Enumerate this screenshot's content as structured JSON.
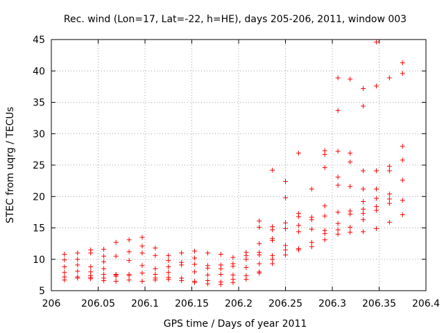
{
  "chart_data": {
    "type": "scatter",
    "title": "Rec. wind (Lon=17, Lat=-22, h=HE), days 205-206, 2011, window 003",
    "xlabel": "GPS time / Days of year 2011",
    "ylabel": "STEC from uqrg / TECUs",
    "xlim": [
      206,
      206.4
    ],
    "ylim": [
      5,
      45
    ],
    "x_ticks": [
      "206",
      "206.05",
      "206.1",
      "206.15",
      "206.2",
      "206.25",
      "206.3",
      "206.35",
      "206.4"
    ],
    "y_ticks": [
      "5",
      "10",
      "15",
      "20",
      "25",
      "30",
      "35",
      "40",
      "45"
    ],
    "grid": true,
    "marker": "plus",
    "color": "#ff0000",
    "series": [
      {
        "points": [
          [
            206.014,
            10.8
          ],
          [
            206.014,
            9.9
          ],
          [
            206.014,
            8.8
          ],
          [
            206.014,
            7.9
          ],
          [
            206.014,
            7.2
          ],
          [
            206.014,
            6.7
          ],
          [
            206.028,
            11.0
          ],
          [
            206.028,
            10.0
          ],
          [
            206.028,
            9.1
          ],
          [
            206.028,
            8.1
          ],
          [
            206.028,
            7.2
          ],
          [
            206.028,
            7.0
          ],
          [
            206.042,
            11.5
          ],
          [
            206.042,
            11.0
          ],
          [
            206.042,
            8.8
          ],
          [
            206.042,
            8.0
          ],
          [
            206.042,
            7.4
          ],
          [
            206.042,
            7.1
          ],
          [
            206.042,
            6.9
          ],
          [
            206.056,
            11.6
          ],
          [
            206.056,
            10.5
          ],
          [
            206.056,
            9.6
          ],
          [
            206.056,
            8.5
          ],
          [
            206.056,
            7.6
          ],
          [
            206.056,
            7.0
          ],
          [
            206.056,
            6.6
          ],
          [
            206.069,
            12.7
          ],
          [
            206.069,
            10.5
          ],
          [
            206.069,
            7.6
          ],
          [
            206.069,
            7.5
          ],
          [
            206.069,
            7.3
          ],
          [
            206.069,
            6.5
          ],
          [
            206.083,
            13.1
          ],
          [
            206.083,
            11.2
          ],
          [
            206.083,
            9.8
          ],
          [
            206.083,
            7.6
          ],
          [
            206.083,
            7.4
          ],
          [
            206.083,
            6.7
          ],
          [
            206.097,
            13.5
          ],
          [
            206.097,
            12.1
          ],
          [
            206.097,
            11.0
          ],
          [
            206.097,
            9.0
          ],
          [
            206.097,
            7.8
          ],
          [
            206.097,
            6.5
          ],
          [
            206.111,
            11.8
          ],
          [
            206.111,
            10.6
          ],
          [
            206.111,
            8.5
          ],
          [
            206.111,
            7.6
          ],
          [
            206.111,
            7.0
          ],
          [
            206.111,
            6.7
          ],
          [
            206.125,
            10.6
          ],
          [
            206.125,
            9.8
          ],
          [
            206.125,
            8.8
          ],
          [
            206.125,
            7.9
          ],
          [
            206.125,
            7.1
          ],
          [
            206.125,
            6.8
          ],
          [
            206.139,
            11.0
          ],
          [
            206.139,
            9.5
          ],
          [
            206.139,
            9.1
          ],
          [
            206.139,
            7.0
          ],
          [
            206.139,
            6.6
          ],
          [
            206.153,
            11.3
          ],
          [
            206.153,
            10.2
          ],
          [
            206.153,
            9.2
          ],
          [
            206.153,
            8.0
          ],
          [
            206.153,
            6.5
          ],
          [
            206.153,
            6.3
          ],
          [
            206.167,
            11.0
          ],
          [
            206.167,
            9.0
          ],
          [
            206.167,
            8.6
          ],
          [
            206.167,
            7.5
          ],
          [
            206.167,
            6.6
          ],
          [
            206.167,
            6.1
          ],
          [
            206.181,
            10.8
          ],
          [
            206.181,
            9.1
          ],
          [
            206.181,
            8.5
          ],
          [
            206.181,
            7.6
          ],
          [
            206.181,
            6.4
          ],
          [
            206.181,
            6.0
          ],
          [
            206.194,
            10.3
          ],
          [
            206.194,
            9.3
          ],
          [
            206.194,
            8.9
          ],
          [
            206.194,
            7.5
          ],
          [
            206.194,
            6.8
          ],
          [
            206.194,
            6.3
          ],
          [
            206.208,
            11.1
          ],
          [
            206.208,
            10.6
          ],
          [
            206.208,
            10.0
          ],
          [
            206.208,
            8.7
          ],
          [
            206.208,
            7.4
          ],
          [
            206.208,
            6.8
          ],
          [
            206.222,
            16.1
          ],
          [
            206.222,
            15.1
          ],
          [
            206.222,
            12.5
          ],
          [
            206.222,
            11.1
          ],
          [
            206.222,
            10.7
          ],
          [
            206.222,
            9.3
          ],
          [
            206.222,
            8.0
          ],
          [
            206.222,
            7.8
          ],
          [
            206.236,
            24.2
          ],
          [
            206.236,
            15.2
          ],
          [
            206.236,
            14.7
          ],
          [
            206.236,
            13.3
          ],
          [
            206.236,
            13.0
          ],
          [
            206.236,
            10.6
          ],
          [
            206.236,
            10.0
          ],
          [
            206.236,
            9.3
          ],
          [
            206.25,
            22.4
          ],
          [
            206.25,
            19.8
          ],
          [
            206.25,
            15.8
          ],
          [
            206.25,
            14.9
          ],
          [
            206.25,
            12.2
          ],
          [
            206.25,
            11.5
          ],
          [
            206.25,
            10.7
          ],
          [
            206.264,
            26.9
          ],
          [
            206.264,
            17.3
          ],
          [
            206.264,
            16.8
          ],
          [
            206.264,
            15.4
          ],
          [
            206.264,
            14.4
          ],
          [
            206.264,
            11.7
          ],
          [
            206.264,
            11.5
          ],
          [
            206.278,
            21.2
          ],
          [
            206.278,
            16.7
          ],
          [
            206.278,
            16.3
          ],
          [
            206.278,
            14.8
          ],
          [
            206.278,
            12.7
          ],
          [
            206.278,
            12.0
          ],
          [
            206.292,
            27.3
          ],
          [
            206.292,
            26.7
          ],
          [
            206.292,
            24.6
          ],
          [
            206.292,
            18.5
          ],
          [
            206.292,
            16.9
          ],
          [
            206.292,
            14.6
          ],
          [
            206.292,
            14.1
          ],
          [
            206.292,
            13.1
          ],
          [
            206.306,
            38.9
          ],
          [
            206.306,
            33.7
          ],
          [
            206.306,
            27.2
          ],
          [
            206.306,
            23.1
          ],
          [
            206.306,
            21.8
          ],
          [
            206.306,
            17.5
          ],
          [
            206.306,
            15.7
          ],
          [
            206.306,
            14.7
          ],
          [
            206.306,
            14.0
          ],
          [
            206.319,
            38.7
          ],
          [
            206.319,
            26.9
          ],
          [
            206.319,
            25.5
          ],
          [
            206.319,
            21.6
          ],
          [
            206.319,
            17.7
          ],
          [
            206.319,
            17.2
          ],
          [
            206.319,
            15.1
          ],
          [
            206.319,
            14.3
          ],
          [
            206.333,
            37.2
          ],
          [
            206.333,
            34.4
          ],
          [
            206.333,
            24.1
          ],
          [
            206.333,
            21.2
          ],
          [
            206.333,
            19.2
          ],
          [
            206.333,
            18.0
          ],
          [
            206.333,
            17.3
          ],
          [
            206.333,
            16.3
          ],
          [
            206.333,
            14.4
          ],
          [
            206.347,
            44.6
          ],
          [
            206.347,
            37.6
          ],
          [
            206.347,
            24.1
          ],
          [
            206.347,
            21.2
          ],
          [
            206.347,
            19.7
          ],
          [
            206.347,
            18.4
          ],
          [
            206.347,
            17.8
          ],
          [
            206.347,
            14.9
          ],
          [
            206.361,
            38.9
          ],
          [
            206.361,
            24.8
          ],
          [
            206.361,
            24.1
          ],
          [
            206.361,
            20.4
          ],
          [
            206.361,
            19.6
          ],
          [
            206.361,
            18.9
          ],
          [
            206.361,
            15.9
          ],
          [
            206.375,
            41.3
          ],
          [
            206.375,
            39.6
          ],
          [
            206.375,
            28.0
          ],
          [
            206.375,
            25.8
          ],
          [
            206.375,
            22.6
          ],
          [
            206.375,
            19.4
          ],
          [
            206.375,
            17.1
          ]
        ]
      }
    ]
  }
}
